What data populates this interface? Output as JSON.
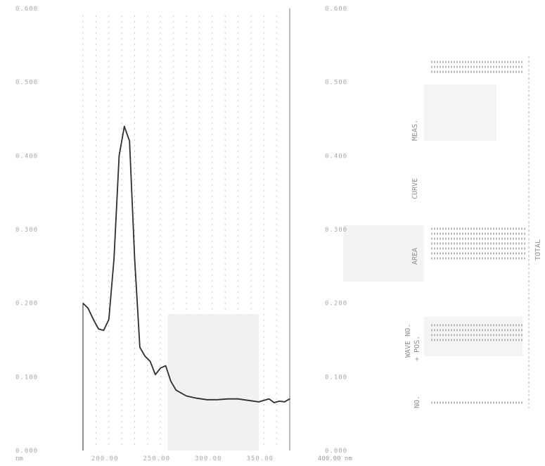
{
  "chart_data": {
    "type": "line",
    "title": "",
    "xlabel": "",
    "ylabel": "",
    "xlim": [
      200,
      400
    ],
    "ylim": [
      0.0,
      0.6
    ],
    "grid": true,
    "x_ticks": [
      {
        "value": 200,
        "label": "200.00"
      },
      {
        "value": 250,
        "label": "250.00"
      },
      {
        "value": 300,
        "label": "300.00"
      },
      {
        "value": 350,
        "label": "350.00"
      },
      {
        "value": 400,
        "label": "400.00"
      }
    ],
    "y_ticks_left": [
      {
        "value": 0.6,
        "label": "0.600"
      },
      {
        "value": 0.5,
        "label": "0.500"
      },
      {
        "value": 0.4,
        "label": "0.400"
      },
      {
        "value": 0.3,
        "label": "0.300"
      },
      {
        "value": 0.2,
        "label": "0.200"
      },
      {
        "value": 0.1,
        "label": "0.100"
      },
      {
        "value": 0.0,
        "label": "0.000"
      }
    ],
    "y_ticks_right": [
      {
        "value": 0.6,
        "label": "0.600"
      },
      {
        "value": 0.5,
        "label": "0.500"
      },
      {
        "value": 0.4,
        "label": "0.400"
      },
      {
        "value": 0.3,
        "label": "0.300"
      },
      {
        "value": 0.2,
        "label": "0.200"
      },
      {
        "value": 0.1,
        "label": "0.100"
      },
      {
        "value": 0.0,
        "label": "0.000"
      }
    ],
    "x": [
      200,
      205,
      210,
      215,
      220,
      225,
      230,
      235,
      240,
      245,
      250,
      255,
      260,
      265,
      270,
      275,
      280,
      285,
      290,
      300,
      310,
      320,
      330,
      340,
      350,
      360,
      370,
      380,
      385,
      390,
      395,
      400
    ],
    "y": [
      0.2,
      0.193,
      0.178,
      0.165,
      0.163,
      0.178,
      0.26,
      0.4,
      0.44,
      0.42,
      0.26,
      0.14,
      0.128,
      0.121,
      0.103,
      0.112,
      0.115,
      0.094,
      0.082,
      0.074,
      0.071,
      0.069,
      0.069,
      0.07,
      0.07,
      0.068,
      0.066,
      0.07,
      0.065,
      0.067,
      0.066,
      0.07
    ]
  },
  "side_panel": {
    "label_left_1": "0.600",
    "label_left_2": "0.500",
    "label_left_3": "0.400",
    "label_left_4": "0.300",
    "label_left_5": "0.200",
    "label_left_6": "0.100",
    "label_left_7": "0.000",
    "rot_label_a": "CURVE",
    "rot_label_b": "MEAS.",
    "rot_label_c": "AREA",
    "rot_label_d": "WAVE NO.",
    "rot_label_e": "+ POS.",
    "rot_label_f": "TOTAL",
    "rot_label_g": "NO.",
    "axis_extra": "400.00 nm",
    "x_left_label": "nm"
  }
}
